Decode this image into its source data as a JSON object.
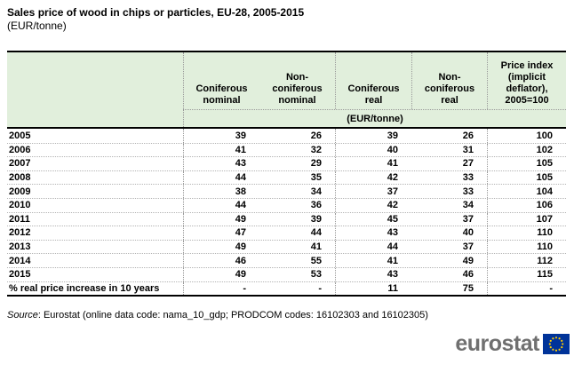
{
  "page": {
    "title": "Sales price of wood in chips or particles, EU-28, 2005-2015",
    "subtitle": "(EUR/tonne)"
  },
  "source": {
    "prefix": "Source",
    "text": ": Eurostat (online data code: nama_10_gdp; PRODCOM codes: 16102303 and 16102305)"
  },
  "logo": {
    "brand": "eurostat",
    "flag_blue": "#003399",
    "star_yellow": "#ffcc00",
    "text_gray": "#707070"
  },
  "table_style": {
    "header_green": "#e1efdc"
  },
  "chart_data": {
    "type": "table",
    "title": "Sales price of wood in chips or particles, EU-28, 2005-2015 (EUR/tonne)",
    "columns": [
      "",
      "Coniferous nominal",
      "Non-coniferous nominal",
      "Coniferous real",
      "Non-coniferous real",
      "Price index (implicit deflator), 2005=100"
    ],
    "column_display": [
      "",
      "Coniferous\nnominal",
      "Non-\nconiferous\nnominal",
      "Coniferous\nreal",
      "Non-\nconiferous\nreal",
      "Price index\n(implicit\ndeflator),\n2005=100"
    ],
    "subheader": "(EUR/tonne)",
    "rows": [
      {
        "label": "2005",
        "values": [
          "39",
          "26",
          "39",
          "26",
          "100"
        ]
      },
      {
        "label": "2006",
        "values": [
          "41",
          "32",
          "40",
          "31",
          "102"
        ]
      },
      {
        "label": "2007",
        "values": [
          "43",
          "29",
          "41",
          "27",
          "105"
        ]
      },
      {
        "label": "2008",
        "values": [
          "44",
          "35",
          "42",
          "33",
          "105"
        ]
      },
      {
        "label": "2009",
        "values": [
          "38",
          "34",
          "37",
          "33",
          "104"
        ]
      },
      {
        "label": "2010",
        "values": [
          "44",
          "36",
          "42",
          "34",
          "106"
        ]
      },
      {
        "label": "2011",
        "values": [
          "49",
          "39",
          "45",
          "37",
          "107"
        ]
      },
      {
        "label": "2012",
        "values": [
          "47",
          "44",
          "43",
          "40",
          "110"
        ]
      },
      {
        "label": "2013",
        "values": [
          "49",
          "41",
          "44",
          "37",
          "110"
        ]
      },
      {
        "label": "2014",
        "values": [
          "46",
          "55",
          "41",
          "49",
          "112"
        ]
      },
      {
        "label": "2015",
        "values": [
          "49",
          "53",
          "43",
          "46",
          "115"
        ]
      },
      {
        "label": "% real price increase in 10 years",
        "values": [
          "-",
          "-",
          "11",
          "75",
          "-"
        ]
      }
    ]
  }
}
